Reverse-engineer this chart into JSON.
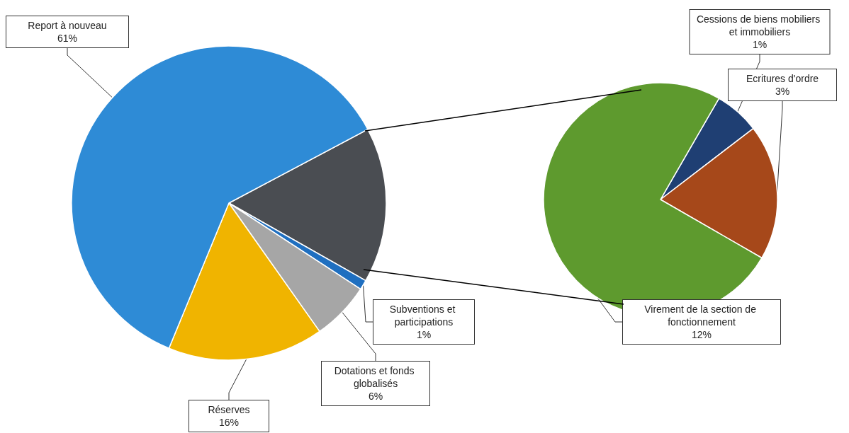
{
  "chart_data": [
    {
      "type": "pie",
      "categories": [
        null,
        "Subventions et participations",
        "Dotations et fonds globalisés",
        "Réserves",
        "Report à nouveau"
      ],
      "values": [
        16,
        1,
        6,
        16,
        61
      ],
      "colors": [
        "#4a4d52",
        "#1f6fc0",
        "#a6a6a6",
        "#f0b400",
        "#2e8bd6"
      ],
      "value_labels": [
        null,
        "1%",
        "6%",
        "16%",
        "61%"
      ],
      "legend": false
    },
    {
      "type": "pie",
      "categories": [
        "Cessions de biens mobiliers et immobiliers",
        "Ecritures d'ordre",
        "Virement de la section de fonctionnement"
      ],
      "values": [
        1,
        3,
        12
      ],
      "colors": [
        "#1f3f73",
        "#a6481a",
        "#5e9a2e"
      ],
      "value_labels": [
        "1%",
        "3%",
        "12%"
      ],
      "legend": false
    }
  ]
}
